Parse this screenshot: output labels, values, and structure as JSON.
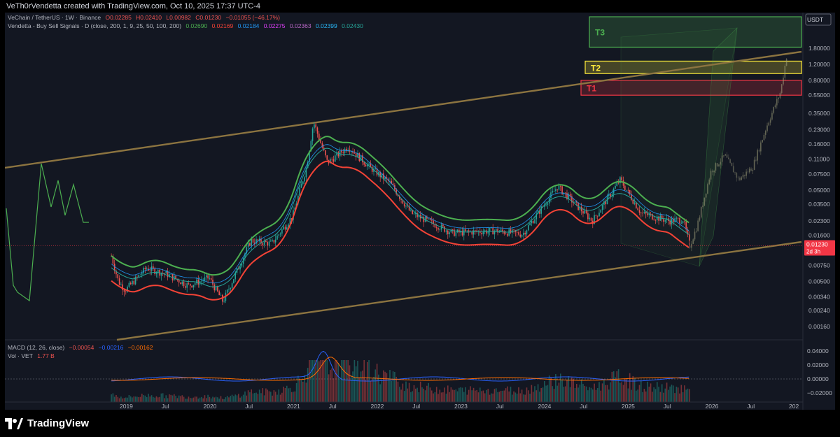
{
  "header": {
    "credit": "VeTh0rVendetta created with TradingView.com, Oct 10, 2025 17:37 UTC-4"
  },
  "legend": {
    "line1": {
      "symbol": "VeChain / TetherUS · 1W · Binance",
      "o": "O0.02285",
      "h": "H0.02410",
      "l": "L0.00982",
      "c": "C0.01230",
      "change": "−0.01055 (−46.17%)"
    },
    "line2": {
      "name": "Vendetta - Buy Sell Signals · D (close, 200, 1, 9, 25, 50, 100, 200)",
      "values": [
        "0.02690",
        "0.02169",
        "0.02184",
        "0.02275",
        "0.02363",
        "0.02399",
        "0.02430"
      ]
    },
    "macd": {
      "name": "MACD (12, 26, close)",
      "values": [
        "−0.00054",
        "−0.00216",
        "−0.00162"
      ]
    },
    "vol": {
      "name": "Vol · VET",
      "value": "1.77 B"
    }
  },
  "colors": {
    "bg": "#131722",
    "up": "#26a69a",
    "down": "#ef5350",
    "channel": "#8c7440",
    "ribbon_green": "#4caf50",
    "ribbon_red": "#f44336",
    "macd": "#2962ff",
    "signal": "#ff6d00",
    "t3": "#4caf50",
    "t2": "#ffeb3b",
    "t1": "#f23645",
    "price_tag": "#f23645"
  },
  "chart_data": {
    "type": "candlestick",
    "price_axis": {
      "unit": "USDT",
      "scale": "log",
      "ticks": [
        "1.80000",
        "1.20000",
        "0.80000",
        "0.55000",
        "0.35000",
        "0.23000",
        "0.16000",
        "0.11000",
        "0.07500",
        "0.05000",
        "0.03500",
        "0.02300",
        "0.01600",
        "0.01100",
        "0.00750",
        "0.00500",
        "0.00340",
        "0.00240",
        "0.00160"
      ]
    },
    "time_axis": {
      "ticks": [
        "2019",
        "Jul",
        "2020",
        "Jul",
        "2021",
        "Jul",
        "2022",
        "Jul",
        "2023",
        "Jul",
        "2024",
        "Jul",
        "2025",
        "Jul",
        "2026",
        "Jul",
        "202"
      ]
    },
    "last_price": {
      "value": "0.01230",
      "countdown": "2d 3h"
    },
    "targets": [
      {
        "label": "T3",
        "low": 1.85,
        "high": 4.2
      },
      {
        "label": "T2",
        "low": 0.95,
        "high": 1.3
      },
      {
        "label": "T1",
        "low": 0.55,
        "high": 0.8
      }
    ],
    "history": [
      [
        "2018-11",
        0.0095
      ],
      [
        "2018-12",
        0.005
      ],
      [
        "2019-01",
        0.004
      ],
      [
        "2019-04",
        0.007
      ],
      [
        "2019-07",
        0.006
      ],
      [
        "2019-10",
        0.0045
      ],
      [
        "2020-01",
        0.0055
      ],
      [
        "2020-03",
        0.003
      ],
      [
        "2020-07",
        0.014
      ],
      [
        "2020-10",
        0.013
      ],
      [
        "2021-01",
        0.026
      ],
      [
        "2021-03",
        0.09
      ],
      [
        "2021-04",
        0.28
      ],
      [
        "2021-06",
        0.1
      ],
      [
        "2021-09",
        0.15
      ],
      [
        "2021-12",
        0.09
      ],
      [
        "2022-03",
        0.06
      ],
      [
        "2022-06",
        0.028
      ],
      [
        "2022-12",
        0.017
      ],
      [
        "2023-06",
        0.018
      ],
      [
        "2023-10",
        0.0165
      ],
      [
        "2024-03",
        0.055
      ],
      [
        "2024-08",
        0.023
      ],
      [
        "2024-12",
        0.065
      ],
      [
        "2025-03",
        0.028
      ],
      [
        "2025-07",
        0.023
      ],
      [
        "2025-09",
        0.024
      ],
      [
        "2025-10",
        0.0123
      ]
    ],
    "projection": [
      [
        "2025-10",
        0.0123
      ],
      [
        "2025-11",
        0.02
      ],
      [
        "2026-01",
        0.08
      ],
      [
        "2026-03",
        0.12
      ],
      [
        "2026-05",
        0.065
      ],
      [
        "2026-07",
        0.09
      ],
      [
        "2026-09",
        0.25
      ],
      [
        "2026-11",
        0.6
      ],
      [
        "2026-12",
        1.7
      ]
    ],
    "oscillator_axis": {
      "ticks": [
        "0.04000",
        "0.02000",
        "0.00000",
        "−0.02000"
      ]
    }
  }
}
